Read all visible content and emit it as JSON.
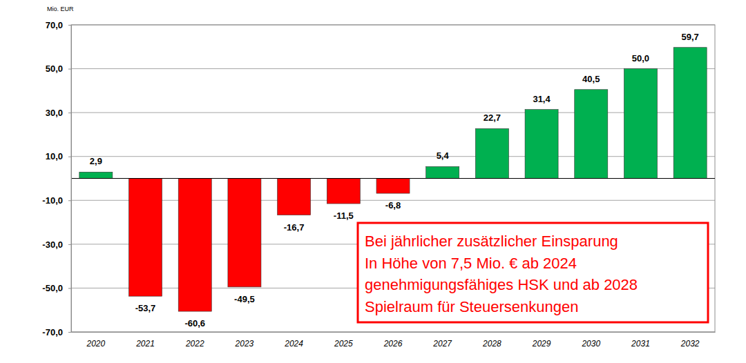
{
  "chart_data": {
    "type": "bar",
    "y_label": "Mio. EUR",
    "categories": [
      "2020",
      "2021",
      "2022",
      "2023",
      "2024",
      "2025",
      "2026",
      "2027",
      "2028",
      "2029",
      "2030",
      "2031",
      "2032"
    ],
    "values": [
      2.9,
      -53.7,
      -60.6,
      -49.5,
      -16.7,
      -11.5,
      -6.8,
      5.4,
      22.7,
      31.4,
      40.5,
      50.0,
      59.7
    ],
    "value_labels": [
      "2,9",
      "-53,7",
      "-60,6",
      "-49,5",
      "-16,7",
      "-11,5",
      "-6,8",
      "5,4",
      "22,7",
      "31,4",
      "40,5",
      "50,0",
      "59,7"
    ],
    "colors": [
      "#00b050",
      "#ff0000",
      "#ff0000",
      "#ff0000",
      "#ff0000",
      "#ff0000",
      "#ff0000",
      "#00b050",
      "#00b050",
      "#00b050",
      "#00b050",
      "#00b050",
      "#00b050"
    ],
    "data_labels": true,
    "ylim": [
      -70,
      70
    ],
    "yticks": [
      {
        "value": -70,
        "label": "-70,0"
      },
      {
        "value": -50,
        "label": "-50,0"
      },
      {
        "value": -30,
        "label": "-30,0"
      },
      {
        "value": -10,
        "label": "-10,0"
      },
      {
        "value": 10,
        "label": "10,0"
      },
      {
        "value": 30,
        "label": "30,0"
      },
      {
        "value": 50,
        "label": "50,0"
      },
      {
        "value": 70,
        "label": "70,0"
      }
    ],
    "grid": true,
    "annotations": [
      "Bei jährlicher zusätzlicher Einsparung",
      "In Höhe von 7,5 Mio. € ab 2024",
      "genehmigungsfähiges HSK und ab 2028",
      "Spielraum für Steuersenkungen"
    ]
  }
}
